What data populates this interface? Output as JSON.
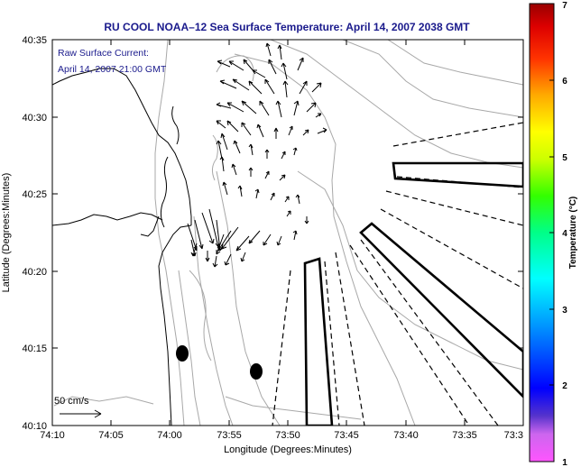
{
  "title": "RU COOL  NOAA–12  Sea Surface Temperature:  April 14, 2007 2038 GMT",
  "annotation": {
    "line1": "Raw Surface Current:",
    "line2": "April 14, 2007 21:00 GMT"
  },
  "scale_label": "50 cm/s",
  "x_axis": {
    "label": "Longitude (Degrees:Minutes)",
    "ticks": [
      "74:10",
      "74:05",
      "74:00",
      "73:55",
      "73:50",
      "73:45",
      "73:40",
      "73:35",
      "73:3"
    ]
  },
  "y_axis": {
    "label": "Latitude (Degrees:Minutes)",
    "ticks": [
      "40:35",
      "40:30",
      "40:25",
      "40:20",
      "40:15",
      "40:10"
    ]
  },
  "colorbar": {
    "label": "Temperature (°C)",
    "ticks": [
      "7",
      "6",
      "5",
      "4",
      "3",
      "2",
      "1"
    ]
  },
  "colors": {
    "title": "#1a1a8c",
    "contour": "#a8a8a8",
    "frame": "#000000"
  }
}
